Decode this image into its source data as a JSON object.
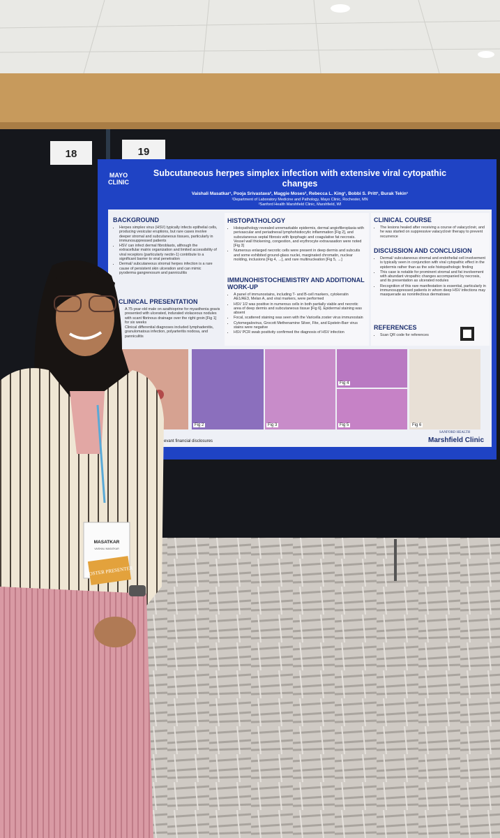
{
  "boards": {
    "left": "18",
    "right": "19"
  },
  "poster": {
    "logo": "MAYO CLINIC",
    "title": "Subcutaneous herpes simplex infection with extensive viral cytopathic changes",
    "authors": "Vaishali Masatkar¹, Pooja Srivastava², Maggie Moses², Rebecca L. King¹, Bobbi S. Pritt¹, Burak Tekin¹",
    "affiliations": [
      "¹Department of Laboratory Medicine and Pathology, Mayo Clinic, Rochester, MN",
      "²Sanford Health Marshfield Clinic, Marshfield, WI"
    ],
    "sections": [
      {
        "heading": "BACKGROUND",
        "items": [
          "Herpes simplex virus (HSV) typically infects epithelial cells, producing vesicular eruptions, but rare cases involve deeper stromal and subcutaneous tissues, particularly in immunosuppressed patients",
          "HSV can infect dermal fibroblasts, although the extracellular matrix organization and limited accessibility of viral receptors (particularly nectin-1) contribute to a significant barrier to viral penetration",
          "Dermal/ subcutaneous stromal herpes infection is a rare cause of persistent skin ulceration and can mimic pyoderma gangrenosum and panniculitis"
        ]
      },
      {
        "heading": "CLINICAL PRESENTATION",
        "items": [
          "A 75-year-old male on azathioprine for myasthenia gravis presented with ulcerated, indurated violaceous nodules with scant fibrinous drainage over the right groin [Fig 1] for six weeks",
          "Clinical differential diagnoses included lymphadenitis, granulomatous infection, polyarteritis nodosa, and panniculitis"
        ]
      },
      {
        "heading": "HISTOPATHOLOGY",
        "items": [
          "Histopathology revealed unremarkable epidermis, dermal angiofibroplasia with perivascular and periadnexal lymphohistiocytic inflammation [Fig 2], and subcutaneous septal fibrosis with lipophagic and coagulative fat necrosis. Vessel wall thickening, congestion, and erythrocyte extravasation were noted [Fig 3]",
          "Numerous enlarged necrotic cells were present in deep dermis and subcutis and some exhibited ground-glass nuclei, marginated chromatin, nuclear molding, inclusions [Fig 4, →], and rare multinucleation [Fig 5, →]"
        ]
      },
      {
        "heading": "IMMUNOHISTOCHEMISTRY AND ADDITIONAL WORK-UP",
        "items": [
          "A panel of immunostains, including T- and B-cell markers, cytokeratin AE1/AE3, Melan A, and viral markers, were performed",
          "HSV 1/2 was positive in numerous cells in both partially viable and necrotic area of deep dermis and subcutaneous tissue [Fig 6]. Epidermal staining was absent",
          "Focal, scattered staining was seen with the Varicella zoster virus immunostain",
          "Cytomegalovirus, Grocott Methenamine Silver, Fite, and Epstein-Barr virus stains were negative",
          "HSV PCR swab positivity confirmed the diagnosis of HSV infection"
        ]
      },
      {
        "heading": "CLINICAL COURSE",
        "items": [
          "The lesions healed after receiving a course of valacyclovir, and he was started on suppressive valacyclovir therapy to prevent recurrence"
        ]
      },
      {
        "heading": "DISCUSSION AND CONCLUSION",
        "items": [
          "Dermal/ subcutaneous stromal and endothelial cell involvement is typically seen in conjunction with viral cytopathic effect in the epidermis rather than as the sole histopathologic finding",
          "This case is notable for prominent stromal and fat involvement with abundant viropathic changes accompanied by necrosis, and its presentation as ulcerated nodules",
          "Recognition of this rare manifestation is essential, particularly in immunosuppressed patients in whom deep HSV infections may masquerade as noninfectious dermatoses"
        ]
      },
      {
        "heading": "REFERENCES",
        "items": [
          "Scan QR code for references"
        ]
      }
    ],
    "figures": [
      "Fig 2",
      "Fig 3",
      "Fig 4",
      "Fig 5",
      "Fig 6"
    ],
    "disclosure": "evant financial disclosures",
    "footer": {
      "small": "SANFORD HEALTH",
      "large": "Marshfield Clinic"
    }
  },
  "badge": {
    "surname": "MASATKAR",
    "fullname": "VAISHALI MASATKAR",
    "ribbon": "POSTER PRESENTER"
  }
}
